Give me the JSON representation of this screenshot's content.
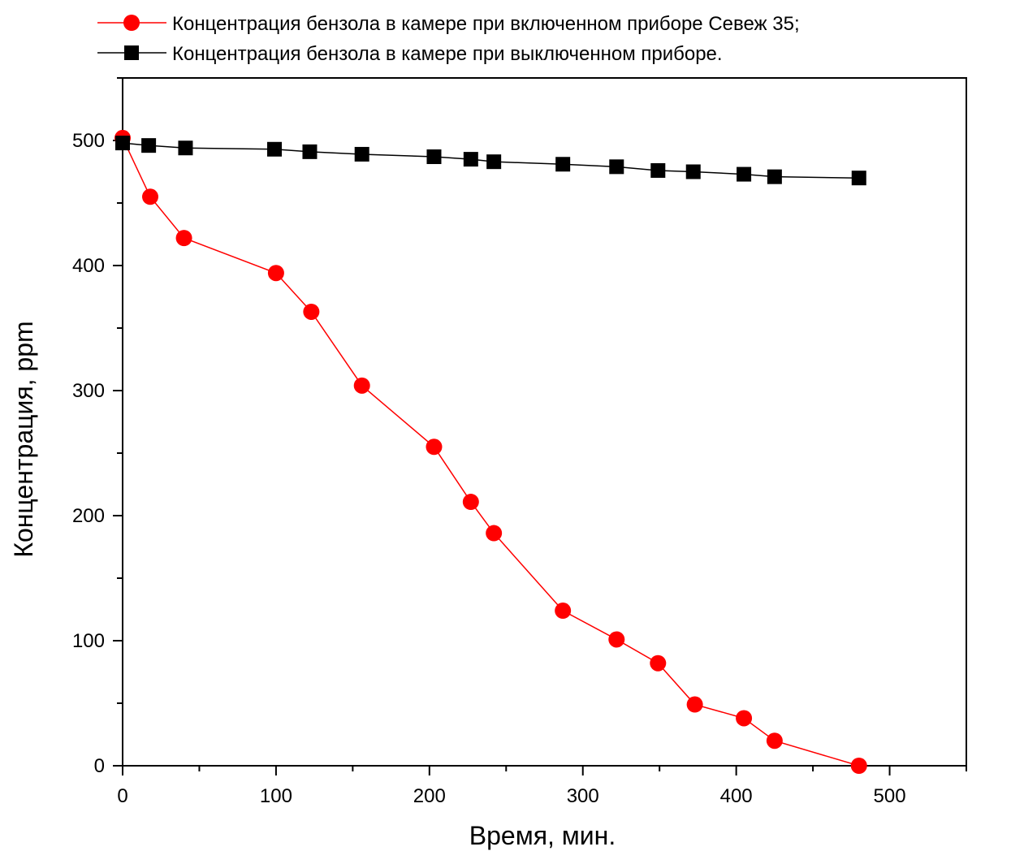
{
  "chart_data": {
    "type": "line",
    "title": "",
    "xlabel": "Время, мин.",
    "ylabel": "Концентрация, ppm",
    "xlim": [
      0,
      550
    ],
    "ylim": [
      0,
      550
    ],
    "x_ticks": [
      0,
      100,
      200,
      300,
      400,
      500
    ],
    "y_ticks": [
      0,
      100,
      200,
      300,
      400,
      500
    ],
    "grid": false,
    "legend_position": "top",
    "series": [
      {
        "name": "Концентрация бензола в камере при включенном приборе Севеж 35;",
        "color": "#ff0000",
        "marker": "circle",
        "points": [
          [
            0,
            502
          ],
          [
            18,
            455
          ],
          [
            40,
            422
          ],
          [
            100,
            394
          ],
          [
            123,
            363
          ],
          [
            156,
            304
          ],
          [
            203,
            255
          ],
          [
            227,
            211
          ],
          [
            242,
            186
          ],
          [
            287,
            124
          ],
          [
            322,
            101
          ],
          [
            349,
            82
          ],
          [
            373,
            49
          ],
          [
            405,
            38
          ],
          [
            425,
            20
          ],
          [
            480,
            0
          ]
        ]
      },
      {
        "name": "Концентрация бензола в камере при выключенном приборе.",
        "color": "#000000",
        "marker": "square",
        "points": [
          [
            0,
            498
          ],
          [
            17,
            496
          ],
          [
            41,
            494
          ],
          [
            99,
            493
          ],
          [
            122,
            491
          ],
          [
            156,
            489
          ],
          [
            203,
            487
          ],
          [
            227,
            485
          ],
          [
            242,
            483
          ],
          [
            287,
            481
          ],
          [
            322,
            479
          ],
          [
            349,
            476
          ],
          [
            372,
            475
          ],
          [
            405,
            473
          ],
          [
            425,
            471
          ],
          [
            480,
            470
          ]
        ]
      }
    ]
  }
}
